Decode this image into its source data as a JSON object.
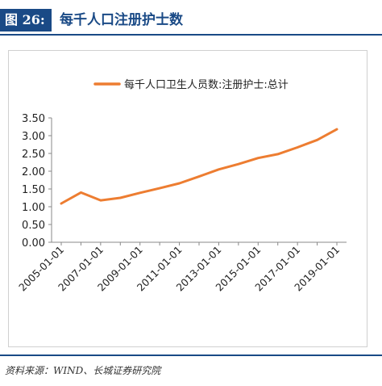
{
  "header": {
    "figure_label": "图 26:",
    "figure_title": "每千人口注册护士数"
  },
  "source": "资料来源：WIND、长城证券研究院",
  "colors": {
    "accent": "#1a4a86",
    "series": "#ed7d31"
  },
  "chart_data": {
    "type": "line",
    "title": "",
    "xlabel": "",
    "ylabel": "",
    "legend_position": "top-center",
    "grid": false,
    "ylim": [
      0,
      3.5
    ],
    "yticks": [
      "0.00",
      "0.50",
      "1.00",
      "1.50",
      "2.00",
      "2.50",
      "3.00",
      "3.50"
    ],
    "xticks": [
      "2005-01-01",
      "2007-01-01",
      "2009-01-01",
      "2011-01-01",
      "2013-01-01",
      "2015-01-01",
      "2017-01-01",
      "2019-01-01"
    ],
    "x": [
      "2005",
      "2006",
      "2007",
      "2008",
      "2009",
      "2010",
      "2011",
      "2012",
      "2013",
      "2014",
      "2015",
      "2016",
      "2017",
      "2018",
      "2019"
    ],
    "series": [
      {
        "name": "每千人口卫生人员数:注册护士:总计",
        "values": [
          1.09,
          1.4,
          1.18,
          1.25,
          1.39,
          1.52,
          1.66,
          1.85,
          2.05,
          2.2,
          2.37,
          2.48,
          2.67,
          2.88,
          3.18
        ]
      }
    ]
  }
}
